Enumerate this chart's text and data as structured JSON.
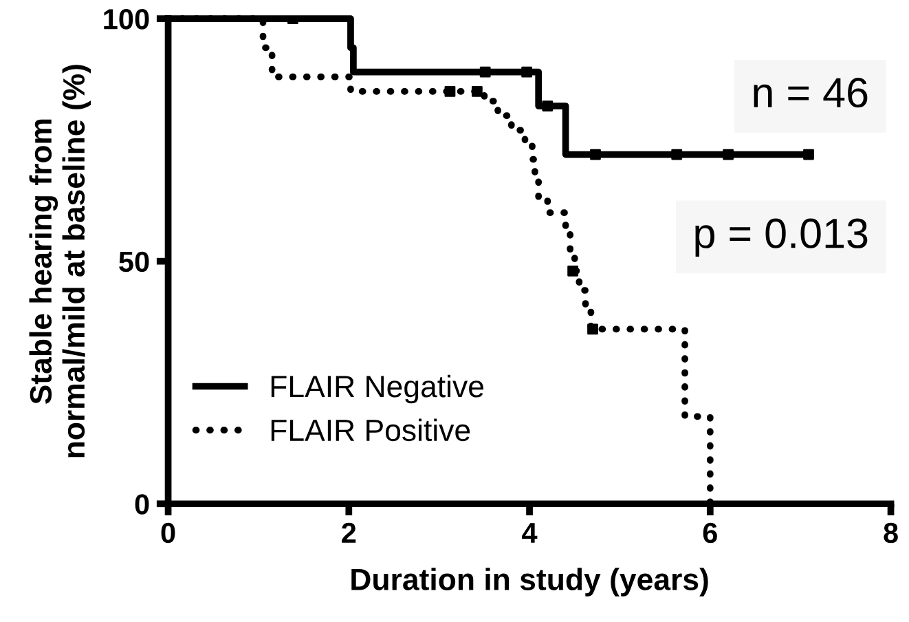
{
  "chart_data": {
    "type": "step",
    "xlabel": "Duration in study (years)",
    "ylabel": "Stable hearing from\nnormal/mild at baseline (%)",
    "xlim": [
      0,
      8
    ],
    "xticks": [
      0,
      2,
      4,
      6,
      8
    ],
    "ylim": [
      0,
      100
    ],
    "yticks": [
      0,
      50,
      100
    ],
    "grid": false,
    "legend": "bottom left",
    "annotations": [
      "n = 46",
      "p = 0.013"
    ],
    "series": [
      {
        "name": "FLAIR Negative",
        "color": "#000000",
        "line_style": "solid",
        "x": [
          0,
          2.02,
          2.05,
          4.1,
          4.4,
          7.09
        ],
        "values": [
          100,
          94,
          89,
          82,
          72,
          72
        ]
      },
      {
        "name": "FLAIR Positive",
        "color": "#000000",
        "line_style": "dotted",
        "x": [
          0,
          1.05,
          1.15,
          2.02,
          3.5,
          3.65,
          3.8,
          3.95,
          4.03,
          4.06,
          4.1,
          4.2,
          4.4,
          4.45,
          4.5,
          4.55,
          4.62,
          4.68,
          5.72,
          6.0
        ],
        "values": [
          100,
          94,
          88,
          85,
          83,
          80,
          77,
          74,
          71,
          67,
          63,
          60,
          56,
          52,
          48,
          44,
          40,
          36,
          18,
          0
        ]
      },
      {
        "type": "scatter",
        "color": "#000000",
        "marker": "square",
        "x": [
          1.38,
          3.51,
          3.97,
          4.2,
          4.73,
          5.63,
          6.2,
          7.09
        ],
        "values": [
          100,
          89,
          89,
          82,
          72,
          72,
          72,
          72
        ]
      },
      {
        "type": "scatter",
        "color": "#000000",
        "marker": "square",
        "x": [
          3.12,
          3.42,
          4.48,
          4.7
        ],
        "values": [
          85,
          85,
          48,
          36
        ]
      }
    ]
  }
}
